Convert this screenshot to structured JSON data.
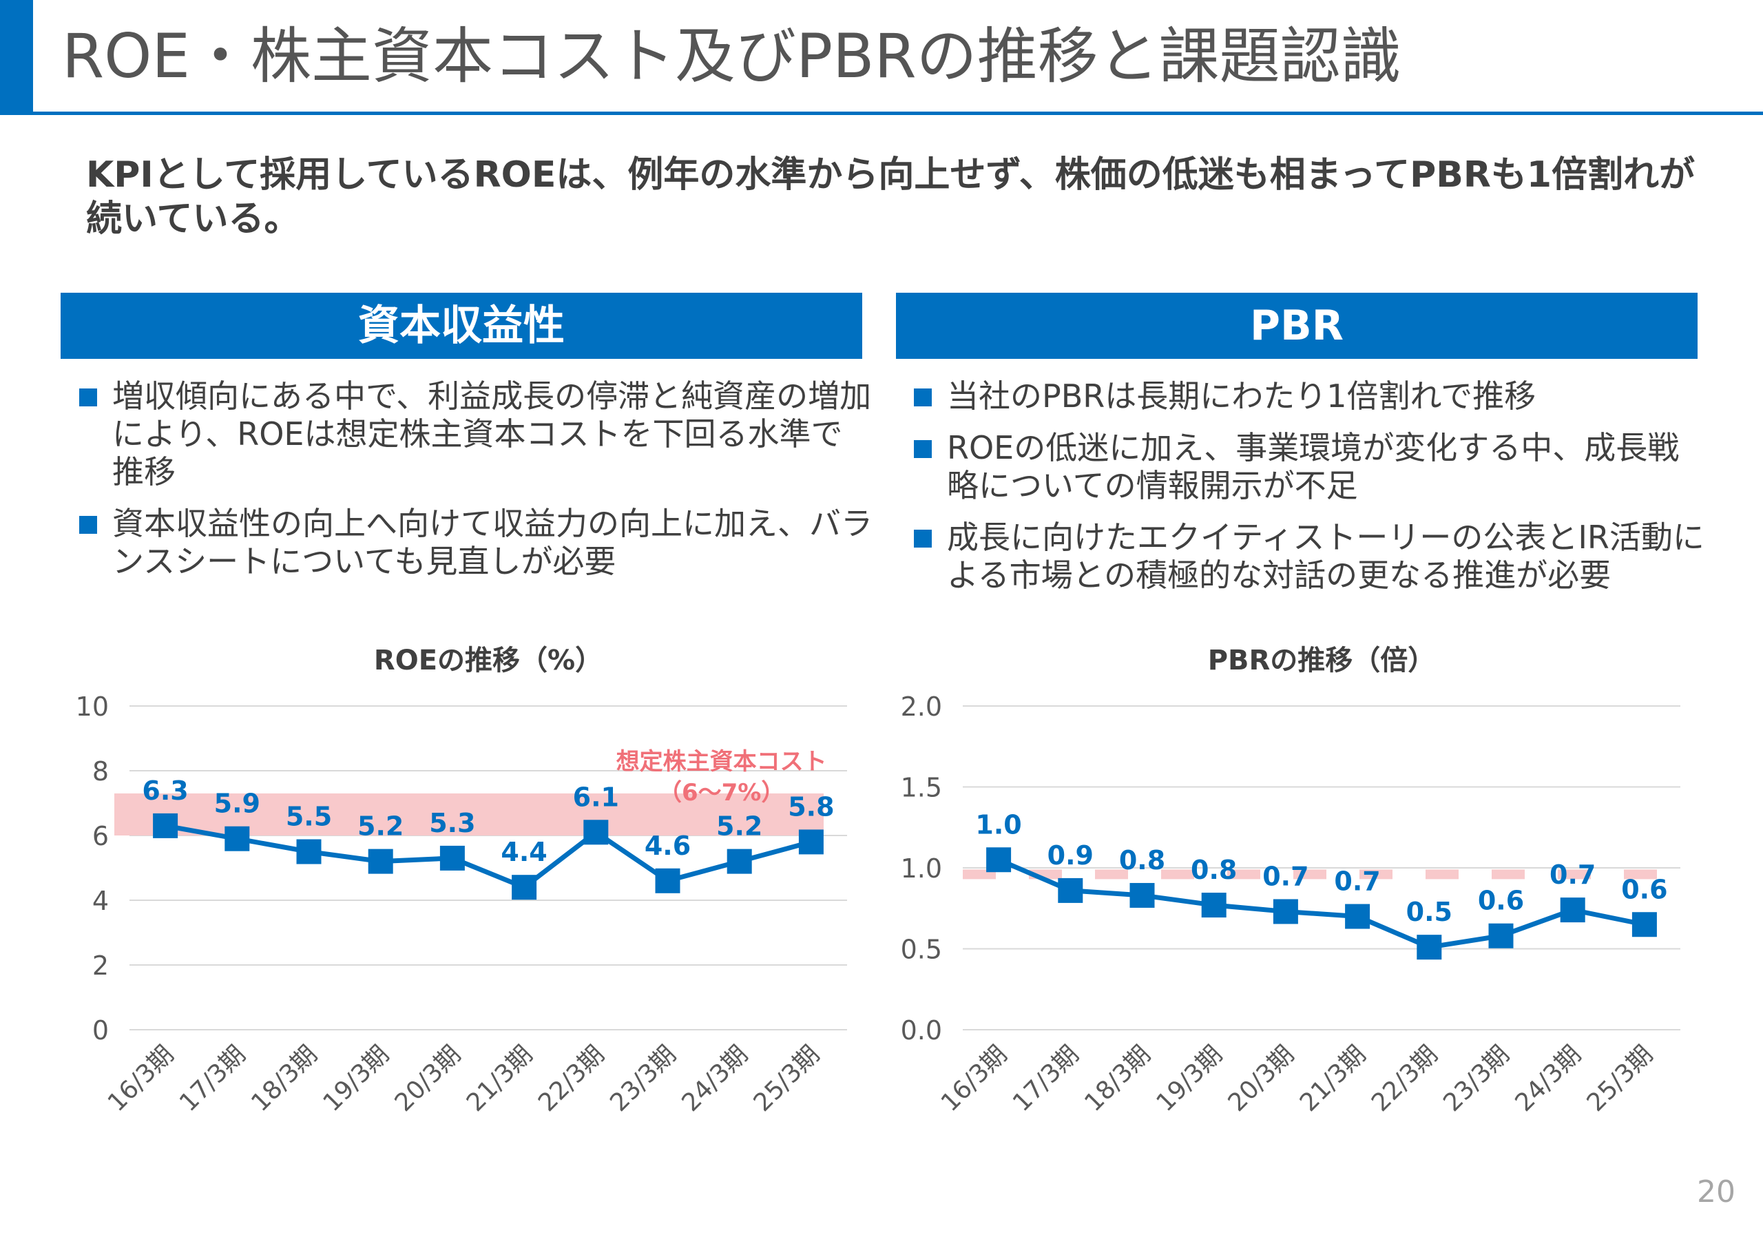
{
  "page": {
    "title": "ROE・株主資本コスト及びPBRの推移と課題認識",
    "lead": "KPIとして採用しているROEは、例年の水準から向上せず、株価の低迷も相まってPBRも1倍割れが続いている。",
    "page_number": "20"
  },
  "left_section": {
    "header": "資本収益性",
    "bullets": [
      "増収傾向にある中で、利益成長の停滞と純資産の増加により、ROEは想定株主資本コストを下回る水準で推移",
      "資本収益性の向上へ向けて収益力の向上に加え、バランスシートについても見直しが必要"
    ]
  },
  "right_section": {
    "header": "PBR",
    "bullets": [
      "当社のPBRは長期にわたり1倍割れで推移",
      "ROEの低迷に加え、事業環境が変化する中、成長戦略についての情報開示が不足",
      "成長に向けたエクイティストーリーの公表とIR活動による市場との積極的な対話の更なる推進が必要"
    ]
  },
  "colors": {
    "accent": "#0070c0",
    "band": "#f8c9cb",
    "band_label": "#f07078",
    "grid": "#d9d9d9",
    "axis_text": "#595959"
  },
  "chart_data": [
    {
      "type": "line",
      "title": "ROEの推移（%）",
      "categories": [
        "16/3期",
        "17/3期",
        "18/3期",
        "19/3期",
        "20/3期",
        "21/3期",
        "22/3期",
        "23/3期",
        "24/3期",
        "25/3期"
      ],
      "series": [
        {
          "name": "ROE",
          "values": [
            6.3,
            5.9,
            5.5,
            5.2,
            5.3,
            4.4,
            6.1,
            4.6,
            5.2,
            5.8
          ]
        }
      ],
      "data_labels": [
        "6.3",
        "5.9",
        "5.5",
        "5.2",
        "5.3",
        "4.4",
        "6.1",
        "4.6",
        "5.2",
        "5.8"
      ],
      "ylim": [
        0,
        10
      ],
      "yticks": [
        0,
        2,
        4,
        6,
        8,
        10
      ],
      "ytick_labels": [
        "0",
        "2",
        "4",
        "6",
        "8",
        "10"
      ],
      "reference_band": {
        "from": 6,
        "to": 7.3,
        "label_line1": "想定株主資本コスト",
        "label_line2": "（6～7%）"
      },
      "grid": true
    },
    {
      "type": "line",
      "title": "PBRの推移（倍）",
      "categories": [
        "16/3期",
        "17/3期",
        "18/3期",
        "19/3期",
        "20/3期",
        "21/3期",
        "22/3期",
        "23/3期",
        "24/3期",
        "25/3期"
      ],
      "series": [
        {
          "name": "PBR",
          "values": [
            1.05,
            0.86,
            0.83,
            0.77,
            0.73,
            0.7,
            0.51,
            0.58,
            0.74,
            0.65
          ]
        }
      ],
      "data_labels": [
        "1.0",
        "0.9",
        "0.8",
        "0.8",
        "0.7",
        "0.7",
        "0.5",
        "0.6",
        "0.7",
        "0.6"
      ],
      "ylim": [
        0,
        2.0
      ],
      "yticks": [
        0,
        0.5,
        1.0,
        1.5,
        2.0
      ],
      "ytick_labels": [
        "0.0",
        "0.5",
        "1.0",
        "1.5",
        "2.0"
      ],
      "reference_line": {
        "value": 0.96
      },
      "grid": true
    }
  ]
}
